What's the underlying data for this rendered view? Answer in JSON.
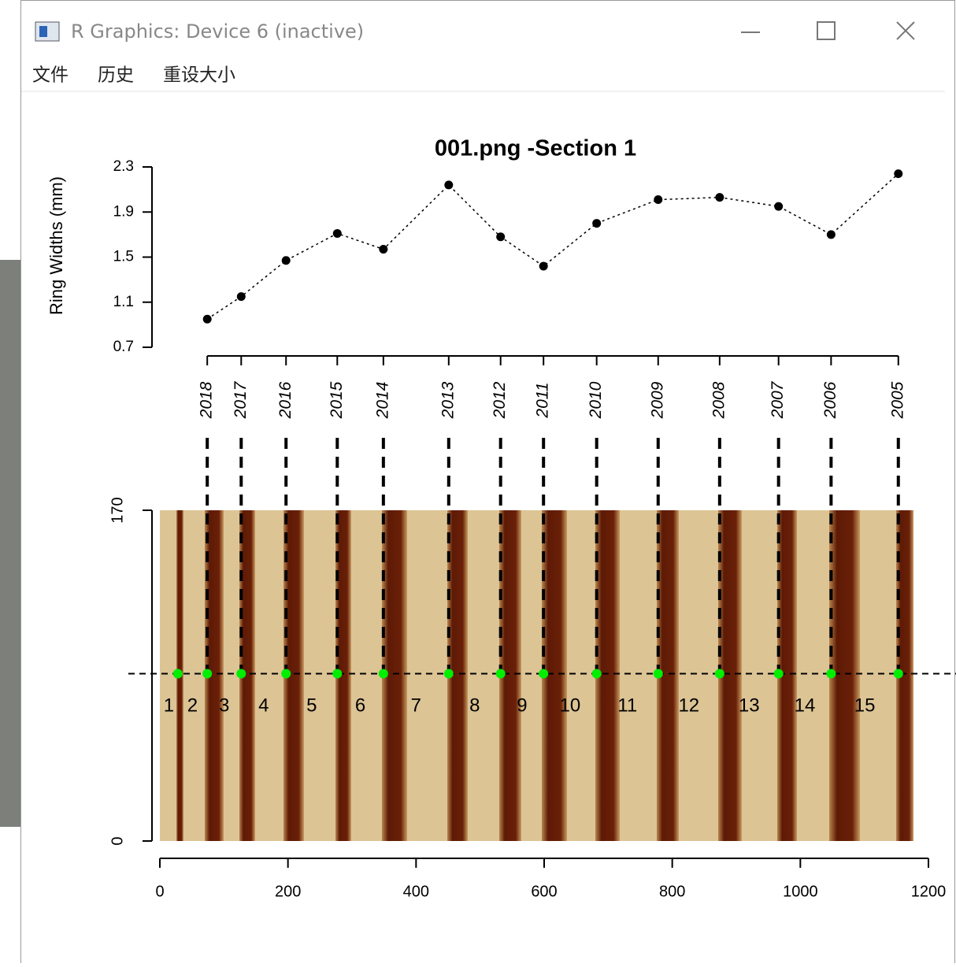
{
  "window": {
    "title": "R Graphics: Device 6 (inactive)",
    "menu": [
      "文件",
      "历史",
      "重设大小"
    ]
  },
  "chart_data": {
    "type": "line",
    "title": "001.png -Section 1",
    "ylabel": "Ring Widths (mm)",
    "x": [
      74,
      127,
      197,
      277,
      349,
      451,
      532,
      599,
      682,
      778,
      874,
      966,
      1048,
      1153
    ],
    "values": [
      0.95,
      1.15,
      1.47,
      1.71,
      1.57,
      2.14,
      1.68,
      1.42,
      1.8,
      2.01,
      2.03,
      1.95,
      1.7,
      2.24
    ],
    "years": [
      "2018",
      "2017",
      "2016",
      "2015",
      "2014",
      "2013",
      "2012",
      "2011",
      "2010",
      "2009",
      "2008",
      "2007",
      "2006",
      "2005"
    ],
    "ylim": [
      0.7,
      2.3
    ],
    "yticks": [
      0.7,
      1.1,
      1.5,
      1.9,
      2.3
    ],
    "xlim": [
      0,
      1200
    ],
    "xticks": [
      0,
      200,
      400,
      600,
      800,
      1000,
      1200
    ],
    "color": "#000000",
    "image": {
      "ylim": [
        0,
        170
      ],
      "yticks": [
        0,
        170
      ],
      "path_y": 86,
      "points_x": [
        28,
        74,
        127,
        197,
        277,
        349,
        451,
        532,
        599,
        682,
        778,
        874,
        966,
        1048,
        1153
      ],
      "point_color": "#00ee00",
      "ring_labels": [
        "1",
        "2",
        "3",
        "4",
        "5",
        "6",
        "7",
        "8",
        "9",
        "10",
        "11",
        "12",
        "13",
        "14",
        "15"
      ]
    }
  }
}
